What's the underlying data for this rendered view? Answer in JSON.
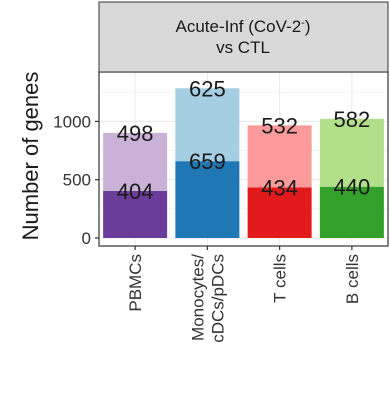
{
  "chart_data": {
    "type": "bar",
    "stacked": true,
    "facet_strip": {
      "line1_main": "Acute-Inf (CoV-2",
      "line1_sup": "-",
      "line1_end": ")",
      "line2": "vs CTL"
    },
    "ylabel": "Number of genes",
    "xlabel": "",
    "ylim": [
      0,
      1350
    ],
    "yticks": [
      0,
      500,
      1000
    ],
    "grid": true,
    "categories": [
      [
        "PBMCs"
      ],
      [
        "Monocytes/",
        "cDCs/pDCs"
      ],
      [
        "T cells"
      ],
      [
        "B cells"
      ]
    ],
    "series": [
      {
        "values": [
          404,
          659,
          434,
          440
        ],
        "colors": [
          "#6a3d9a",
          "#1f78b4",
          "#e31a1c",
          "#33a02c"
        ]
      },
      {
        "values": [
          498,
          625,
          532,
          582
        ],
        "colors": [
          "#cab2d6",
          "#a6cee3",
          "#fb9a99",
          "#b2df8a"
        ]
      }
    ]
  }
}
